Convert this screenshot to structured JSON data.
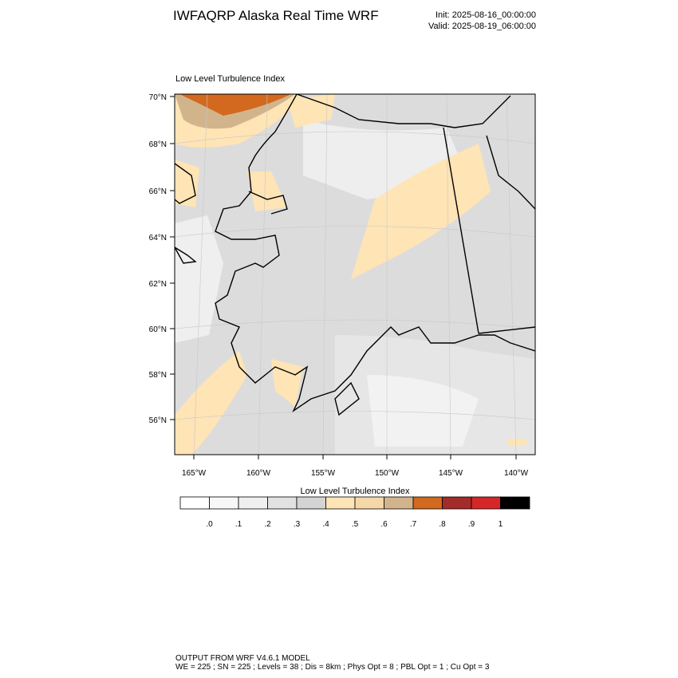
{
  "header": {
    "title": "IWFAQRP Alaska Real Time WRF",
    "init": "Init: 2025-08-16_00:00:00",
    "valid": "Valid: 2025-08-19_06:00:00"
  },
  "map": {
    "title": "Low Level Turbulence Index",
    "lat_labels": [
      "70°N",
      "68°N",
      "66°N",
      "64°N",
      "62°N",
      "60°N",
      "58°N",
      "56°N"
    ],
    "lon_labels": [
      "165°W",
      "160°W",
      "155°W",
      "150°W",
      "145°W",
      "140°W"
    ]
  },
  "colorbar": {
    "title": "Low Level Turbulence Index",
    "colors": [
      "#ffffff",
      "#f7f7f7",
      "#efefef",
      "#e2e2e2",
      "#d4d4d4",
      "#ffe4b5",
      "#f5d7a8",
      "#d2b48c",
      "#d2691e",
      "#a52a2a",
      "#d62728",
      "#000000"
    ],
    "labels": [
      ".0",
      ".1",
      ".2",
      ".3",
      ".4",
      ".5",
      ".6",
      ".7",
      ".8",
      ".9",
      "1"
    ]
  },
  "footer": {
    "line1": "OUTPUT FROM WRF V4.6.1 MODEL",
    "line2": "WE = 225 ; SN = 225 ; Levels = 38 ; Dis = 8km ; Phys Opt = 8 ; PBL Opt = 1 ; Cu Opt = 3"
  }
}
